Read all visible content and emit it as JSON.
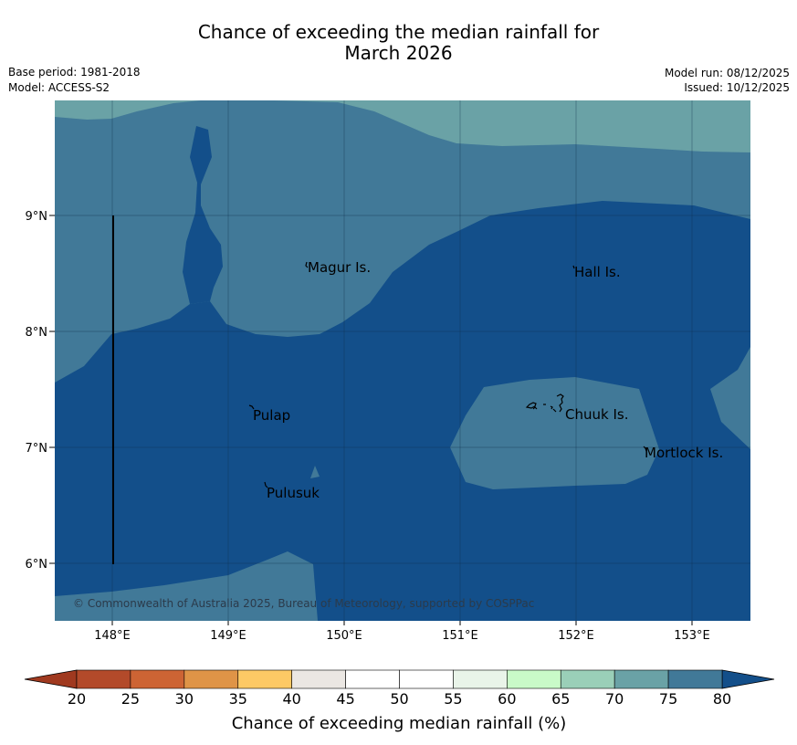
{
  "header": {
    "title_line1": "Chance of exceeding the median rainfall for",
    "title_line2": "March 2026",
    "base_period": "Base period: 1981-2018",
    "model": "Model: ACCESS-S2",
    "model_run": "Model run: 08/12/2025",
    "issued": "Issued: 10/12/2025"
  },
  "map": {
    "lat_ticks": [
      "9°N",
      "8°N",
      "7°N",
      "6°N"
    ],
    "lon_ticks": [
      "148°E",
      "149°E",
      "150°E",
      "151°E",
      "152°E",
      "153°E"
    ],
    "places": {
      "magur": "Magur Is.",
      "hall": "Hall Is.",
      "pulap": "Pulap",
      "chuuk": "Chuuk Is.",
      "mortlock": "Mortlock Is.",
      "pulusuk": "Pulusuk"
    },
    "copyright": "© Commonwealth of Australia 2025, Bureau of Meteorology, supported by COSPPac",
    "colors": {
      "c70_75": "#6aa2a6",
      "c75_80": "#417998",
      "c80_plus": "#134f8a"
    }
  },
  "colorbar": {
    "title": "Chance of exceeding median rainfall (%)",
    "ticks": [
      "20",
      "25",
      "30",
      "35",
      "40",
      "45",
      "50",
      "55",
      "60",
      "65",
      "70",
      "75",
      "80"
    ],
    "colors": [
      "#b34a2a",
      "#cd6434",
      "#df9447",
      "#fdc965",
      "#ebe7e3",
      "#ffffff",
      "#ffffff",
      "#e9f4e9",
      "#c9fac8",
      "#9acfb8",
      "#6aa2a6",
      "#417998"
    ],
    "under_color": "#a0391f",
    "over_color": "#134f8a"
  }
}
